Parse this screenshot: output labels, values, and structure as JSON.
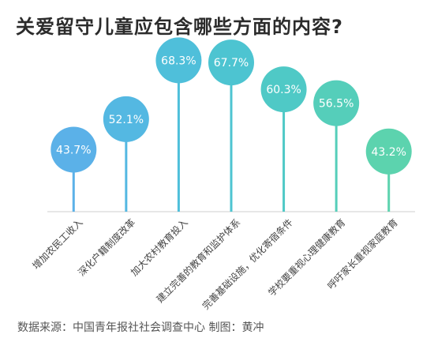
{
  "chart_data": {
    "type": "lollipop",
    "title": "关爱留守儿童应包含哪些方面的内容?",
    "categories": [
      "增加农民工收入",
      "深化户籍制度改革",
      "加大农村教育投入",
      "建立完善的教育和监护体系",
      "完善基础设施，优化寄宿条件",
      "学校要重视心理健康教育",
      "呼吁家长重视家庭教育"
    ],
    "values": [
      43.7,
      52.1,
      68.3,
      67.7,
      60.3,
      56.5,
      43.2
    ],
    "value_labels": [
      "43.7%",
      "52.1%",
      "68.3%",
      "67.7%",
      "60.3%",
      "56.5%",
      "43.2%"
    ],
    "unit": "%",
    "colors": [
      "#5BB1E8",
      "#54B8E2",
      "#4FBFDA",
      "#4DC4D1",
      "#4FC9C6",
      "#55CEBA",
      "#5CD3AE"
    ],
    "ylim": [
      0,
      80
    ],
    "grid": false,
    "source": "数据来源：中国青年报社社会调查中心 制图：黄冲"
  }
}
